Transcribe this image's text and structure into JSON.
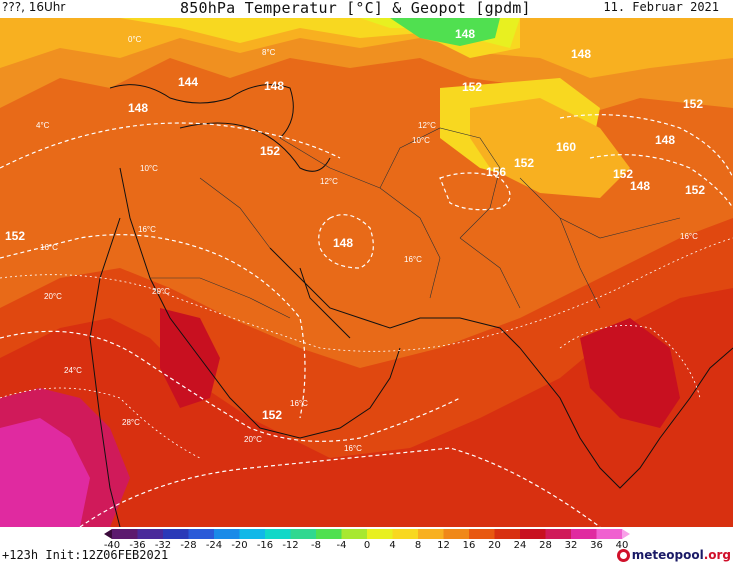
{
  "header": {
    "left_text": "???, 16Uhr",
    "title": "850hPa Temperatur [°C] & Geopot [gpdm]",
    "date": "11. Februar 2021"
  },
  "map": {
    "geopotential_labels": [
      "148",
      "152",
      "144",
      "148",
      "148",
      "152",
      "152",
      "160",
      "156",
      "148",
      "152",
      "148",
      "152",
      "152",
      "148",
      "152",
      "152",
      "148"
    ],
    "temperature_labels": [
      "0°C",
      "4°C",
      "8°C",
      "16°C",
      "12°C",
      "10°C",
      "16°C",
      "20°C",
      "24°C",
      "28°C",
      "20°C",
      "16°C",
      "16°C",
      "20°C",
      "16°C",
      "12°C",
      "16°C",
      "10°C"
    ]
  },
  "scale": {
    "labels": [
      "-40",
      "-36",
      "-32",
      "-28",
      "-24",
      "-20",
      "-16",
      "-12",
      "-8",
      "-4",
      "0",
      "4",
      "8",
      "12",
      "16",
      "20",
      "24",
      "28",
      "32",
      "36",
      "40"
    ],
    "colors": [
      "#3a0a3a",
      "#5c1a6e",
      "#4a2a9a",
      "#2a3ab8",
      "#2a5ad8",
      "#1a8ae8",
      "#10b8e8",
      "#10d8c8",
      "#30d890",
      "#50e050",
      "#a8e830",
      "#e8f020",
      "#f8d820",
      "#f8b020",
      "#f08818",
      "#e85810",
      "#d83010",
      "#c81020",
      "#d01a5a",
      "#e02aa0",
      "#f060d0",
      "#f8a0e8"
    ]
  },
  "footer": {
    "run_info": "+123h Init:12Z06FEB2021",
    "logo_main": "meteopool",
    "logo_suffix": ".org"
  }
}
